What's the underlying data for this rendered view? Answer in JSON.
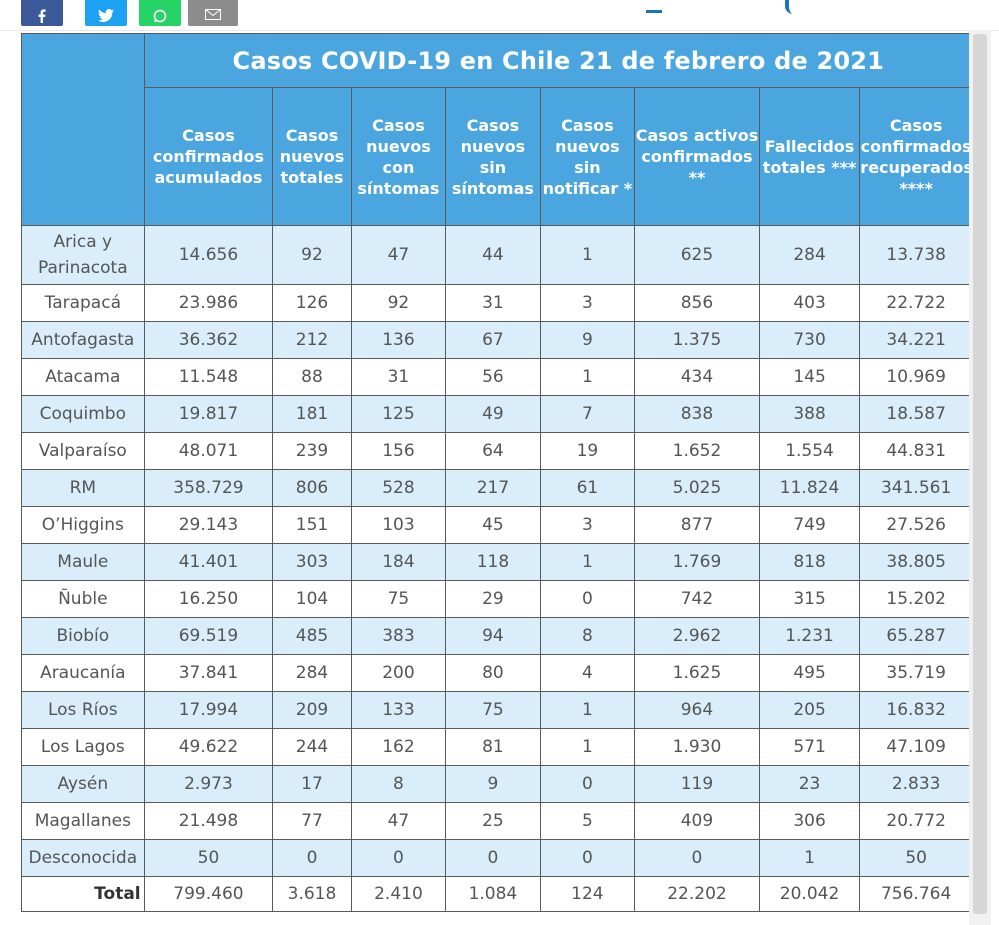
{
  "title": "Casos COVID-19 en Chile 21 de febrero de 2021",
  "columns": [
    "Casos confirmados acumulados",
    "Casos nuevos totales",
    "Casos nuevos con síntomas",
    "Casos nuevos sin síntomas",
    "Casos nuevos sin notificar *",
    "Casos activos confirmados **",
    "Fallecidos totales ***",
    "Casos confirmados recuperados ****"
  ],
  "rows": [
    {
      "region": "Arica y Parinacota",
      "values": [
        "14.656",
        "92",
        "47",
        "44",
        "1",
        "625",
        "284",
        "13.738"
      ]
    },
    {
      "region": "Tarapacá",
      "values": [
        "23.986",
        "126",
        "92",
        "31",
        "3",
        "856",
        "403",
        "22.722"
      ]
    },
    {
      "region": "Antofagasta",
      "values": [
        "36.362",
        "212",
        "136",
        "67",
        "9",
        "1.375",
        "730",
        "34.221"
      ]
    },
    {
      "region": "Atacama",
      "values": [
        "11.548",
        "88",
        "31",
        "56",
        "1",
        "434",
        "145",
        "10.969"
      ]
    },
    {
      "region": "Coquimbo",
      "values": [
        "19.817",
        "181",
        "125",
        "49",
        "7",
        "838",
        "388",
        "18.587"
      ]
    },
    {
      "region": "Valparaíso",
      "values": [
        "48.071",
        "239",
        "156",
        "64",
        "19",
        "1.652",
        "1.554",
        "44.831"
      ]
    },
    {
      "region": "RM",
      "values": [
        "358.729",
        "806",
        "528",
        "217",
        "61",
        "5.025",
        "11.824",
        "341.561"
      ]
    },
    {
      "region": "O’Higgins",
      "values": [
        "29.143",
        "151",
        "103",
        "45",
        "3",
        "877",
        "749",
        "27.526"
      ]
    },
    {
      "region": "Maule",
      "values": [
        "41.401",
        "303",
        "184",
        "118",
        "1",
        "1.769",
        "818",
        "38.805"
      ]
    },
    {
      "region": "Ñuble",
      "values": [
        "16.250",
        "104",
        "75",
        "29",
        "0",
        "742",
        "315",
        "15.202"
      ]
    },
    {
      "region": "Biobío",
      "values": [
        "69.519",
        "485",
        "383",
        "94",
        "8",
        "2.962",
        "1.231",
        "65.287"
      ]
    },
    {
      "region": "Araucanía",
      "values": [
        "37.841",
        "284",
        "200",
        "80",
        "4",
        "1.625",
        "495",
        "35.719"
      ]
    },
    {
      "region": "Los Ríos",
      "values": [
        "17.994",
        "209",
        "133",
        "75",
        "1",
        "964",
        "205",
        "16.832"
      ]
    },
    {
      "region": "Los Lagos",
      "values": [
        "49.622",
        "244",
        "162",
        "81",
        "1",
        "1.930",
        "571",
        "47.109"
      ]
    },
    {
      "region": "Aysén",
      "values": [
        "2.973",
        "17",
        "8",
        "9",
        "0",
        "119",
        "23",
        "2.833"
      ]
    },
    {
      "region": "Magallanes",
      "values": [
        "21.498",
        "77",
        "47",
        "25",
        "5",
        "409",
        "306",
        "20.772"
      ]
    },
    {
      "region": "Desconocida",
      "values": [
        "50",
        "0",
        "0",
        "0",
        "0",
        "0",
        "1",
        "50"
      ]
    }
  ],
  "total": {
    "label": "Total",
    "values": [
      "799.460",
      "3.618",
      "2.410",
      "1.084",
      "124",
      "22.202",
      "20.042",
      "756.764"
    ]
  },
  "colors": {
    "header": "#4ba6e0",
    "stripe": "#d9eefa"
  },
  "share_icons": [
    "facebook-icon",
    "twitter-icon",
    "whatsapp-icon",
    "email-icon"
  ]
}
